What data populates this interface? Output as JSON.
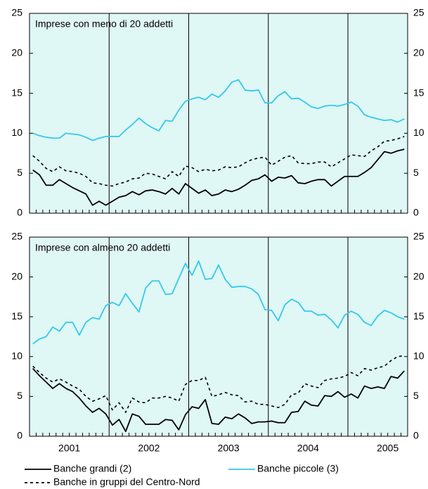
{
  "chart_data": [
    {
      "type": "line",
      "title": "Imprese con meno di 20 addetti",
      "categories": [
        null,
        null,
        null,
        null,
        null,
        null,
        null,
        null,
        null,
        null,
        null,
        null,
        null,
        null,
        null,
        null,
        null,
        null,
        null,
        null,
        null,
        null,
        null,
        null,
        null,
        null,
        null,
        null,
        null,
        null,
        null,
        null,
        null,
        null,
        null,
        null,
        null,
        null,
        null,
        null,
        null,
        null,
        null,
        null,
        null,
        null,
        null,
        null,
        null,
        null,
        null,
        null,
        null,
        null,
        null,
        null,
        null
      ],
      "ylim": [
        0,
        25
      ],
      "yticks": [
        0,
        5,
        10,
        15,
        20,
        25
      ],
      "series": [
        {
          "color": "#000000",
          "values": [
            5.4,
            4.8,
            3.5,
            3.5,
            4.2,
            3.7,
            3.2,
            2.8,
            2.4,
            1.0,
            1.5,
            1.0,
            1.5,
            2.0,
            2.2,
            2.7,
            2.3,
            2.8,
            2.9,
            2.7,
            2.4,
            3.1,
            2.4,
            3.7,
            3.1,
            2.5,
            2.9,
            2.2,
            2.4,
            2.9,
            2.7,
            3.0,
            3.5,
            4.1,
            4.3,
            4.8,
            4.0,
            4.5,
            4.4,
            4.7,
            3.8,
            3.7,
            4.0,
            4.2,
            4.2,
            3.4,
            4.0,
            4.6,
            4.6,
            4.6,
            5.1,
            5.7,
            6.7,
            7.7,
            7.5,
            7.8,
            8.0
          ]
        },
        {
          "color": "#33c9ec",
          "values": [
            10.0,
            9.7,
            9.5,
            9.4,
            9.4,
            10.0,
            9.9,
            9.8,
            9.5,
            9.1,
            9.4,
            9.6,
            9.6,
            9.6,
            10.4,
            11.1,
            11.9,
            11.2,
            10.7,
            10.3,
            11.6,
            11.5,
            12.9,
            14.0,
            14.3,
            14.5,
            14.2,
            14.9,
            14.5,
            15.3,
            16.4,
            16.7,
            15.4,
            15.3,
            15.4,
            13.8,
            13.8,
            14.7,
            15.2,
            14.3,
            14.4,
            13.9,
            13.3,
            13.1,
            13.4,
            13.5,
            13.4,
            13.6,
            13.9,
            13.4,
            12.3,
            12.0,
            11.8,
            11.6,
            11.7,
            11.4,
            11.8
          ]
        },
        {
          "color": "#000000",
          "dashed": true,
          "values": [
            7.2,
            6.5,
            5.6,
            5.2,
            5.8,
            5.3,
            5.2,
            5.0,
            4.6,
            3.8,
            3.7,
            3.5,
            3.4,
            3.7,
            3.9,
            4.3,
            4.4,
            5.0,
            4.9,
            4.6,
            4.3,
            5.2,
            4.6,
            5.9,
            5.7,
            5.2,
            5.5,
            5.3,
            5.4,
            5.8,
            5.7,
            5.8,
            6.3,
            6.7,
            6.9,
            7.0,
            6.0,
            6.5,
            7.0,
            7.2,
            6.3,
            6.2,
            6.2,
            6.4,
            6.4,
            5.8,
            6.3,
            6.8,
            7.3,
            7.2,
            7.1,
            7.8,
            8.3,
            9.0,
            9.1,
            9.3,
            9.6
          ]
        }
      ]
    },
    {
      "type": "line",
      "title": "Imprese con almeno 20 addetti",
      "categories": [
        null,
        null,
        null,
        null,
        null,
        null,
        "2001",
        null,
        null,
        null,
        null,
        null,
        null,
        null,
        null,
        null,
        null,
        null,
        "2002",
        null,
        null,
        null,
        null,
        null,
        null,
        null,
        null,
        null,
        null,
        null,
        "2003",
        null,
        null,
        null,
        null,
        null,
        null,
        null,
        null,
        null,
        null,
        null,
        "2004",
        null,
        null,
        null,
        null,
        null,
        null,
        null,
        null,
        null,
        null,
        null,
        "2005",
        null,
        null
      ],
      "ylim": [
        0,
        25
      ],
      "yticks": [
        0,
        5,
        10,
        15,
        20,
        25
      ],
      "series": [
        {
          "name": "Banche grandi (2)",
          "color": "#000000",
          "values": [
            8.5,
            7.6,
            6.8,
            6.0,
            6.6,
            6.0,
            5.6,
            4.8,
            3.8,
            3.0,
            3.5,
            2.8,
            1.4,
            2.1,
            0.6,
            2.8,
            2.5,
            1.5,
            1.5,
            1.5,
            2.1,
            2.0,
            0.8,
            2.7,
            3.7,
            3.5,
            4.6,
            1.6,
            1.5,
            2.4,
            2.2,
            2.8,
            2.3,
            1.6,
            1.8,
            1.8,
            1.9,
            1.7,
            1.7,
            3.0,
            3.1,
            4.4,
            3.9,
            3.8,
            5.1,
            5.0,
            5.6,
            4.9,
            5.3,
            4.8,
            6.3,
            6.0,
            6.2,
            6.0,
            7.5,
            7.3,
            8.2
          ]
        },
        {
          "name": "Banche piccole (3)",
          "color": "#33c9ec",
          "values": [
            11.6,
            12.2,
            12.5,
            13.7,
            13.2,
            14.3,
            14.3,
            12.7,
            14.3,
            14.9,
            14.7,
            16.4,
            16.8,
            16.4,
            17.9,
            16.7,
            15.6,
            18.6,
            19.5,
            19.5,
            17.8,
            17.9,
            19.8,
            21.7,
            20.2,
            22.0,
            19.7,
            19.8,
            21.5,
            19.7,
            18.7,
            18.8,
            18.8,
            18.5,
            17.8,
            15.9,
            15.8,
            14.5,
            16.5,
            17.2,
            16.8,
            15.7,
            15.7,
            15.2,
            15.3,
            14.6,
            13.6,
            15.2,
            15.7,
            15.3,
            14.3,
            13.9,
            15.1,
            15.8,
            15.5,
            15.0,
            14.7
          ]
        },
        {
          "name": "Banche in gruppi del Centro-Nord",
          "color": "#000000",
          "dashed": true,
          "values": [
            8.8,
            8.0,
            7.3,
            6.8,
            7.2,
            6.8,
            6.3,
            5.9,
            5.0,
            4.4,
            4.7,
            5.1,
            3.3,
            4.2,
            3.0,
            4.8,
            4.3,
            4.2,
            4.8,
            4.8,
            5.0,
            4.8,
            4.4,
            6.5,
            7.0,
            7.0,
            7.4,
            5.0,
            5.2,
            5.5,
            5.2,
            5.1,
            4.3,
            4.4,
            4.0,
            4.0,
            3.8,
            3.6,
            4.0,
            5.2,
            5.4,
            6.6,
            6.3,
            6.1,
            7.0,
            7.2,
            7.3,
            7.5,
            8.0,
            7.6,
            8.5,
            8.3,
            8.6,
            8.8,
            9.5,
            10.0,
            10.1
          ]
        }
      ]
    }
  ]
}
